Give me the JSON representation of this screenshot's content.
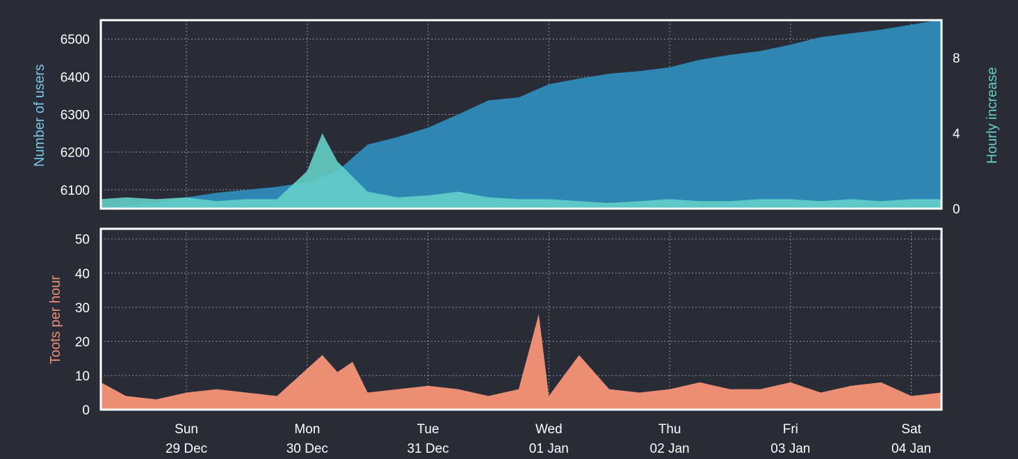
{
  "colors": {
    "background": "#292c37",
    "users": "#2e87b2",
    "hourly_increase": "#63cfc6",
    "toots": "#eb8e74",
    "users_axis_label": "#7ac3e6",
    "hourly_axis_label": "#63cfc6",
    "toots_axis_label": "#eb8e74"
  },
  "chart_data": [
    {
      "type": "area",
      "panel": "top",
      "ylabel": "Number of users",
      "y2label": "Hourly increase",
      "x_ticks": [
        {
          "date": "2019-12-29T00:00",
          "line1": "Sun",
          "line2": "29 Dec"
        },
        {
          "date": "2019-12-30T00:00",
          "line1": "Mon",
          "line2": "30 Dec"
        },
        {
          "date": "2019-12-31T00:00",
          "line1": "Tue",
          "line2": "31 Dec"
        },
        {
          "date": "2020-01-01T00:00",
          "line1": "Wed",
          "line2": "01 Jan"
        },
        {
          "date": "2020-01-02T00:00",
          "line1": "Thu",
          "line2": "02 Jan"
        },
        {
          "date": "2020-01-03T00:00",
          "line1": "Fri",
          "line2": "03 Jan"
        },
        {
          "date": "2020-01-04T00:00",
          "line1": "Sat",
          "line2": "04 Jan"
        }
      ],
      "xlim": [
        "2019-12-28T07:00",
        "2020-01-04T06:00"
      ],
      "ylim": [
        6050,
        6550
      ],
      "yticks": [
        6100,
        6200,
        6300,
        6400,
        6500
      ],
      "y2lim": [
        0,
        10
      ],
      "y2ticks": [
        0,
        4,
        8
      ],
      "grid": true,
      "series": [
        {
          "axis": "left",
          "points": [
            [
              "2019-12-28T07:00",
              6050
            ],
            [
              "2019-12-28T12:00",
              6058
            ],
            [
              "2019-12-28T18:00",
              6066
            ],
            [
              "2019-12-29T00:00",
              6080
            ],
            [
              "2019-12-29T06:00",
              6092
            ],
            [
              "2019-12-29T12:00",
              6100
            ],
            [
              "2019-12-29T18:00",
              6108
            ],
            [
              "2019-12-30T00:00",
              6120
            ],
            [
              "2019-12-30T06:00",
              6150
            ],
            [
              "2019-12-30T12:00",
              6220
            ],
            [
              "2019-12-30T18:00",
              6240
            ],
            [
              "2019-12-31T00:00",
              6265
            ],
            [
              "2019-12-31T06:00",
              6300
            ],
            [
              "2019-12-31T12:00",
              6337
            ],
            [
              "2019-12-31T18:00",
              6345
            ],
            [
              "2020-01-01T00:00",
              6380
            ],
            [
              "2020-01-01T06:00",
              6395
            ],
            [
              "2020-01-01T12:00",
              6408
            ],
            [
              "2020-01-01T18:00",
              6415
            ],
            [
              "2020-01-02T00:00",
              6425
            ],
            [
              "2020-01-02T06:00",
              6445
            ],
            [
              "2020-01-02T12:00",
              6458
            ],
            [
              "2020-01-02T18:00",
              6468
            ],
            [
              "2020-01-03T00:00",
              6485
            ],
            [
              "2020-01-03T06:00",
              6505
            ],
            [
              "2020-01-03T12:00",
              6515
            ],
            [
              "2020-01-03T18:00",
              6525
            ],
            [
              "2020-01-04T00:00",
              6538
            ],
            [
              "2020-01-04T03:00",
              6545
            ],
            [
              "2020-01-04T06:00",
              6550
            ]
          ]
        },
        {
          "axis": "right",
          "points": [
            [
              "2019-12-28T07:00",
              0.5
            ],
            [
              "2019-12-28T12:00",
              0.6
            ],
            [
              "2019-12-28T18:00",
              0.5
            ],
            [
              "2019-12-29T00:00",
              0.6
            ],
            [
              "2019-12-29T06:00",
              0.4
            ],
            [
              "2019-12-29T12:00",
              0.5
            ],
            [
              "2019-12-29T18:00",
              0.5
            ],
            [
              "2019-12-30T00:00",
              2.0
            ],
            [
              "2019-12-30T03:00",
              4.0
            ],
            [
              "2019-12-30T06:00",
              2.5
            ],
            [
              "2019-12-30T12:00",
              0.9
            ],
            [
              "2019-12-30T18:00",
              0.6
            ],
            [
              "2019-12-31T00:00",
              0.7
            ],
            [
              "2019-12-31T06:00",
              0.9
            ],
            [
              "2019-12-31T12:00",
              0.6
            ],
            [
              "2019-12-31T18:00",
              0.5
            ],
            [
              "2020-01-01T00:00",
              0.5
            ],
            [
              "2020-01-01T06:00",
              0.4
            ],
            [
              "2020-01-01T12:00",
              0.3
            ],
            [
              "2020-01-01T18:00",
              0.4
            ],
            [
              "2020-01-02T00:00",
              0.5
            ],
            [
              "2020-01-02T06:00",
              0.4
            ],
            [
              "2020-01-02T12:00",
              0.4
            ],
            [
              "2020-01-02T18:00",
              0.5
            ],
            [
              "2020-01-03T00:00",
              0.5
            ],
            [
              "2020-01-03T06:00",
              0.4
            ],
            [
              "2020-01-03T12:00",
              0.5
            ],
            [
              "2020-01-03T18:00",
              0.4
            ],
            [
              "2020-01-04T00:00",
              0.5
            ],
            [
              "2020-01-04T06:00",
              0.5
            ]
          ]
        }
      ]
    },
    {
      "type": "area",
      "panel": "bottom",
      "ylabel": "Toots per hour",
      "ylim": [
        0,
        53
      ],
      "yticks": [
        0,
        10,
        20,
        30,
        40,
        50
      ],
      "grid": true,
      "series": [
        {
          "points": [
            [
              "2019-12-28T07:00",
              8
            ],
            [
              "2019-12-28T12:00",
              4
            ],
            [
              "2019-12-28T18:00",
              3
            ],
            [
              "2019-12-29T00:00",
              5
            ],
            [
              "2019-12-29T06:00",
              6
            ],
            [
              "2019-12-29T12:00",
              5
            ],
            [
              "2019-12-29T18:00",
              4
            ],
            [
              "2019-12-30T00:00",
              12
            ],
            [
              "2019-12-30T03:00",
              16
            ],
            [
              "2019-12-30T06:00",
              11
            ],
            [
              "2019-12-30T09:00",
              14
            ],
            [
              "2019-12-30T12:00",
              5
            ],
            [
              "2019-12-30T18:00",
              6
            ],
            [
              "2019-12-31T00:00",
              7
            ],
            [
              "2019-12-31T06:00",
              6
            ],
            [
              "2019-12-31T12:00",
              4
            ],
            [
              "2019-12-31T18:00",
              6
            ],
            [
              "2019-12-31T22:00",
              28
            ],
            [
              "2020-01-01T00:00",
              4
            ],
            [
              "2020-01-01T06:00",
              16
            ],
            [
              "2020-01-01T12:00",
              6
            ],
            [
              "2020-01-01T18:00",
              5
            ],
            [
              "2020-01-02T00:00",
              6
            ],
            [
              "2020-01-02T06:00",
              8
            ],
            [
              "2020-01-02T12:00",
              6
            ],
            [
              "2020-01-02T18:00",
              6
            ],
            [
              "2020-01-03T00:00",
              8
            ],
            [
              "2020-01-03T06:00",
              5
            ],
            [
              "2020-01-03T12:00",
              7
            ],
            [
              "2020-01-03T18:00",
              8
            ],
            [
              "2020-01-04T00:00",
              4
            ],
            [
              "2020-01-04T06:00",
              5
            ]
          ]
        }
      ]
    }
  ]
}
